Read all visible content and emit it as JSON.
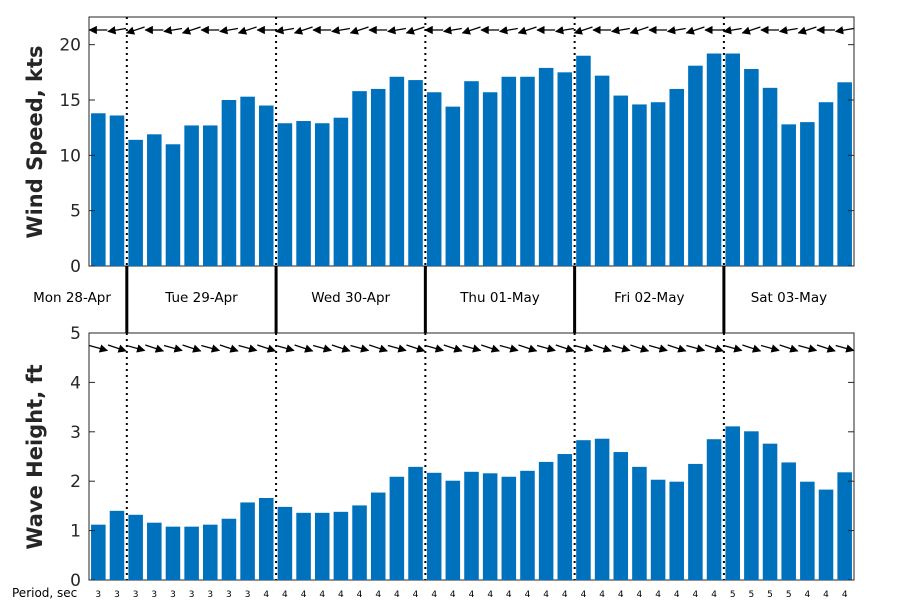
{
  "chart_data": [
    {
      "type": "bar",
      "ylabel": "Wind Speed, kts",
      "ylim": [
        0,
        22.5
      ],
      "yticks": [
        0,
        5,
        10,
        15,
        20
      ],
      "color": "#0072bd",
      "values": [
        13.8,
        13.6,
        11.4,
        11.9,
        11.0,
        12.7,
        12.7,
        15.0,
        15.3,
        14.5,
        12.9,
        13.1,
        12.9,
        13.4,
        15.8,
        16.0,
        17.1,
        16.8,
        15.7,
        14.4,
        16.7,
        15.7,
        17.1,
        17.1,
        17.9,
        17.5,
        19.0,
        17.2,
        15.4,
        14.6,
        14.8,
        16.0,
        18.1,
        19.2,
        19.2,
        17.8,
        16.1,
        12.8,
        13.0,
        14.8,
        16.6
      ],
      "direction_arrows": "wind direction arrows along top edge, pointing west/southwest"
    },
    {
      "type": "bar",
      "ylabel": "Wave Height, ft",
      "ylim": [
        0,
        5
      ],
      "yticks": [
        0,
        1,
        2,
        3,
        4,
        5
      ],
      "color": "#0072bd",
      "values": [
        1.12,
        1.4,
        1.32,
        1.16,
        1.08,
        1.08,
        1.12,
        1.24,
        1.57,
        1.66,
        1.48,
        1.36,
        1.36,
        1.38,
        1.51,
        1.77,
        2.09,
        2.29,
        2.17,
        2.01,
        2.19,
        2.16,
        2.09,
        2.21,
        2.39,
        2.55,
        2.83,
        2.86,
        2.59,
        2.29,
        2.03,
        1.99,
        2.35,
        2.85,
        3.11,
        3.01,
        2.76,
        2.38,
        1.99,
        1.83,
        2.18
      ],
      "direction_arrows": "wave direction arrows along top edge, pointing east/southeast"
    }
  ],
  "days": [
    "Mon 28-Apr",
    "Tue 29-Apr",
    "Wed 30-Apr",
    "Thu 01-May",
    "Fri 02-May",
    "Sat 03-May"
  ],
  "period_label": "Period, sec",
  "periods": [
    3,
    3,
    3,
    3,
    3,
    3,
    3,
    3,
    3,
    4,
    4,
    4,
    4,
    4,
    4,
    4,
    4,
    4,
    4,
    4,
    4,
    4,
    4,
    4,
    4,
    4,
    4,
    4,
    4,
    4,
    4,
    4,
    4,
    4,
    5,
    5,
    5,
    5,
    4,
    4,
    4
  ],
  "day_boundaries_after_bar": [
    1,
    9,
    17,
    25,
    33
  ]
}
